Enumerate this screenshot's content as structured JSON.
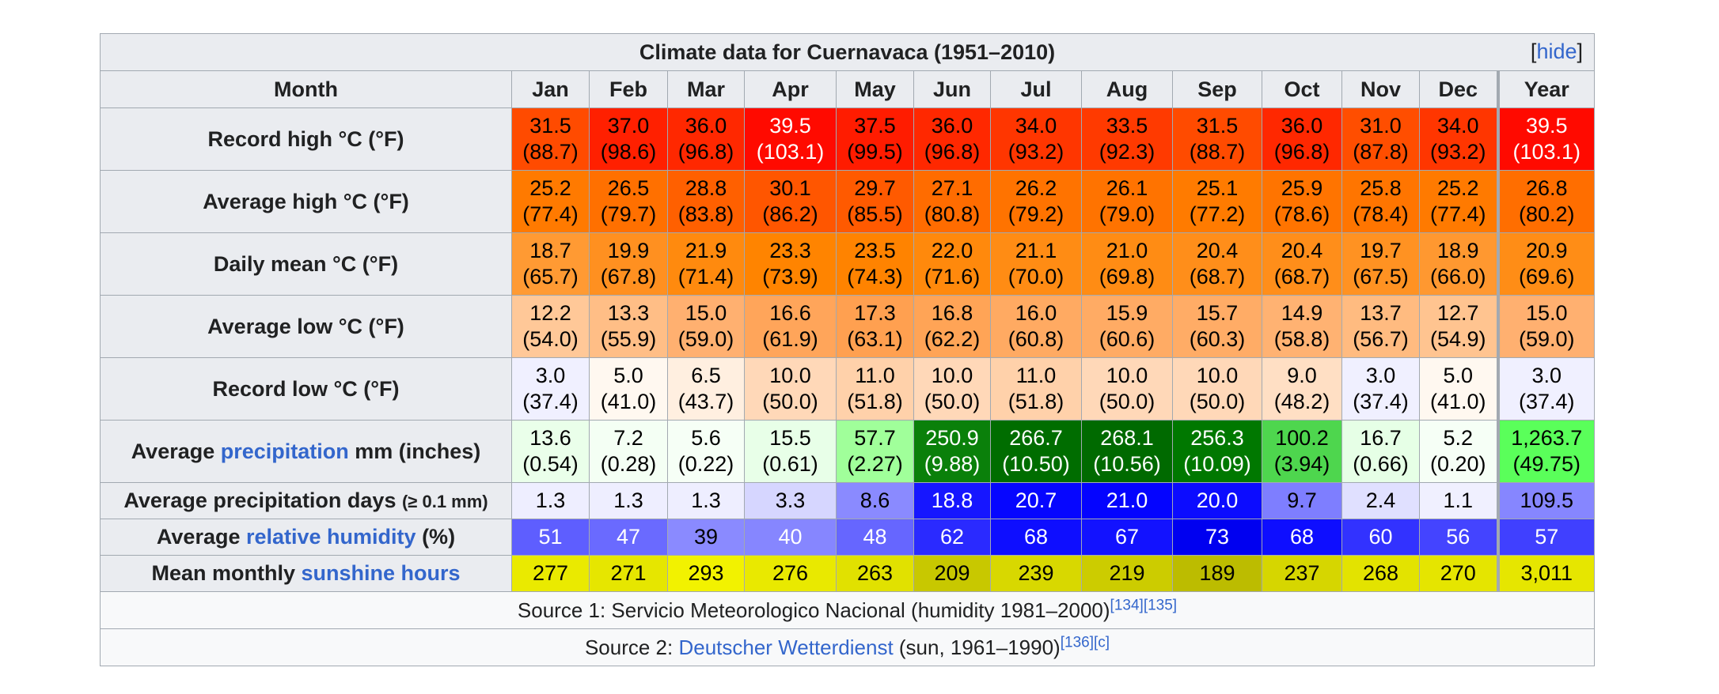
{
  "table": {
    "title": "Climate data for Cuernavaca (1951–2010)",
    "hide": "hide",
    "header": [
      "Month",
      "Jan",
      "Feb",
      "Mar",
      "Apr",
      "May",
      "Jun",
      "Jul",
      "Aug",
      "Sep",
      "Oct",
      "Nov",
      "Dec",
      "Year"
    ],
    "rows": [
      {
        "label": [
          {
            "text": "Record high °C (°F)"
          }
        ],
        "cells": [
          {
            "a": "31.5",
            "b": "(88.7)",
            "bg": "#ff4b00"
          },
          {
            "a": "37.0",
            "b": "(98.6)",
            "bg": "#ff2000"
          },
          {
            "a": "36.0",
            "b": "(96.8)",
            "bg": "#ff2800"
          },
          {
            "a": "39.5",
            "b": "(103.1)",
            "bg": "#ff0a00",
            "fg": "#ffffff"
          },
          {
            "a": "37.5",
            "b": "(99.5)",
            "bg": "#ff1c00"
          },
          {
            "a": "36.0",
            "b": "(96.8)",
            "bg": "#ff2800"
          },
          {
            "a": "34.0",
            "b": "(93.2)",
            "bg": "#ff3600"
          },
          {
            "a": "33.5",
            "b": "(92.3)",
            "bg": "#ff3a00"
          },
          {
            "a": "31.5",
            "b": "(88.7)",
            "bg": "#ff4b00"
          },
          {
            "a": "36.0",
            "b": "(96.8)",
            "bg": "#ff2800"
          },
          {
            "a": "31.0",
            "b": "(87.8)",
            "bg": "#ff4e00"
          },
          {
            "a": "34.0",
            "b": "(93.2)",
            "bg": "#ff3600"
          },
          {
            "a": "39.5",
            "b": "(103.1)",
            "bg": "#ff0a00",
            "fg": "#ffffff"
          }
        ]
      },
      {
        "label": [
          {
            "text": "Average high °C (°F)"
          }
        ],
        "cells": [
          {
            "a": "25.2",
            "b": "(77.4)",
            "bg": "#ff7a00"
          },
          {
            "a": "26.5",
            "b": "(79.7)",
            "bg": "#ff7000"
          },
          {
            "a": "28.8",
            "b": "(83.8)",
            "bg": "#ff6000"
          },
          {
            "a": "30.1",
            "b": "(86.2)",
            "bg": "#ff5600"
          },
          {
            "a": "29.7",
            "b": "(85.5)",
            "bg": "#ff5a00"
          },
          {
            "a": "27.1",
            "b": "(80.8)",
            "bg": "#ff6c00"
          },
          {
            "a": "26.2",
            "b": "(79.2)",
            "bg": "#ff7300"
          },
          {
            "a": "26.1",
            "b": "(79.0)",
            "bg": "#ff7300"
          },
          {
            "a": "25.1",
            "b": "(77.2)",
            "bg": "#ff7b00"
          },
          {
            "a": "25.9",
            "b": "(78.6)",
            "bg": "#ff7400"
          },
          {
            "a": "25.8",
            "b": "(78.4)",
            "bg": "#ff7500"
          },
          {
            "a": "25.2",
            "b": "(77.4)",
            "bg": "#ff7a00"
          },
          {
            "a": "26.8",
            "b": "(80.2)",
            "bg": "#ff6e00"
          }
        ]
      },
      {
        "label": [
          {
            "text": "Daily mean °C (°F)"
          }
        ],
        "cells": [
          {
            "a": "18.7",
            "b": "(65.7)",
            "bg": "#ff9a33"
          },
          {
            "a": "19.9",
            "b": "(67.8)",
            "bg": "#ff9020"
          },
          {
            "a": "21.9",
            "b": "(71.4)",
            "bg": "#ff8a0e"
          },
          {
            "a": "23.3",
            "b": "(73.9)",
            "bg": "#ff8400"
          },
          {
            "a": "23.5",
            "b": "(74.3)",
            "bg": "#ff8300"
          },
          {
            "a": "22.0",
            "b": "(71.6)",
            "bg": "#ff890c"
          },
          {
            "a": "21.1",
            "b": "(70.0)",
            "bg": "#ff8c14"
          },
          {
            "a": "21.0",
            "b": "(69.8)",
            "bg": "#ff8c14"
          },
          {
            "a": "20.4",
            "b": "(68.7)",
            "bg": "#ff8e1a"
          },
          {
            "a": "20.4",
            "b": "(68.7)",
            "bg": "#ff8e1a"
          },
          {
            "a": "19.7",
            "b": "(67.5)",
            "bg": "#ff9222"
          },
          {
            "a": "18.9",
            "b": "(66.0)",
            "bg": "#ff9830"
          },
          {
            "a": "20.9",
            "b": "(69.6)",
            "bg": "#ff8d16"
          }
        ]
      },
      {
        "label": [
          {
            "text": "Average low °C (°F)"
          }
        ],
        "cells": [
          {
            "a": "12.2",
            "b": "(54.0)",
            "bg": "#ffc898"
          },
          {
            "a": "13.3",
            "b": "(55.9)",
            "bg": "#ffbe86"
          },
          {
            "a": "15.0",
            "b": "(59.0)",
            "bg": "#ffb070"
          },
          {
            "a": "16.6",
            "b": "(61.9)",
            "bg": "#ffa55a"
          },
          {
            "a": "17.3",
            "b": "(63.1)",
            "bg": "#ffa050"
          },
          {
            "a": "16.8",
            "b": "(62.2)",
            "bg": "#ffa456"
          },
          {
            "a": "16.0",
            "b": "(60.8)",
            "bg": "#ffaa62"
          },
          {
            "a": "15.9",
            "b": "(60.6)",
            "bg": "#ffab64"
          },
          {
            "a": "15.7",
            "b": "(60.3)",
            "bg": "#ffac66"
          },
          {
            "a": "14.9",
            "b": "(58.8)",
            "bg": "#ffb272"
          },
          {
            "a": "13.7",
            "b": "(56.7)",
            "bg": "#ffbb80"
          },
          {
            "a": "12.7",
            "b": "(54.9)",
            "bg": "#ffc490"
          },
          {
            "a": "15.0",
            "b": "(59.0)",
            "bg": "#ffb070"
          }
        ]
      },
      {
        "label": [
          {
            "text": "Record low °C (°F)"
          }
        ],
        "cells": [
          {
            "a": "3.0",
            "b": "(37.4)",
            "bg": "#f0f0ff"
          },
          {
            "a": "5.0",
            "b": "(41.0)",
            "bg": "#fff8f0"
          },
          {
            "a": "6.5",
            "b": "(43.7)",
            "bg": "#ffefe0"
          },
          {
            "a": "10.0",
            "b": "(50.0)",
            "bg": "#ffd8b8"
          },
          {
            "a": "11.0",
            "b": "(51.8)",
            "bg": "#ffd1aa"
          },
          {
            "a": "10.0",
            "b": "(50.0)",
            "bg": "#ffd8b8"
          },
          {
            "a": "11.0",
            "b": "(51.8)",
            "bg": "#ffd1aa"
          },
          {
            "a": "10.0",
            "b": "(50.0)",
            "bg": "#ffd8b8"
          },
          {
            "a": "10.0",
            "b": "(50.0)",
            "bg": "#ffd8b8"
          },
          {
            "a": "9.0",
            "b": "(48.2)",
            "bg": "#ffdfc4"
          },
          {
            "a": "3.0",
            "b": "(37.4)",
            "bg": "#f0f0ff"
          },
          {
            "a": "5.0",
            "b": "(41.0)",
            "bg": "#fff8f0"
          },
          {
            "a": "3.0",
            "b": "(37.4)",
            "bg": "#f0f0ff"
          }
        ]
      },
      {
        "label": [
          {
            "text": "Average "
          },
          {
            "text": "precipitation",
            "link": true
          },
          {
            "text": " mm (inches)"
          }
        ],
        "cells": [
          {
            "a": "13.6",
            "b": "(0.54)",
            "bg": "#eaffea"
          },
          {
            "a": "7.2",
            "b": "(0.28)",
            "bg": "#f4fff4"
          },
          {
            "a": "5.6",
            "b": "(0.22)",
            "bg": "#f6fff6"
          },
          {
            "a": "15.5",
            "b": "(0.61)",
            "bg": "#e8ffe8"
          },
          {
            "a": "57.7",
            "b": "(2.27)",
            "bg": "#a0ff9a"
          },
          {
            "a": "250.9",
            "b": "(9.88)",
            "bg": "#0a800a",
            "fg": "#ffffff"
          },
          {
            "a": "266.7",
            "b": "(10.50)",
            "bg": "#006d00",
            "fg": "#ffffff"
          },
          {
            "a": "268.1",
            "b": "(10.56)",
            "bg": "#006a00",
            "fg": "#ffffff"
          },
          {
            "a": "256.3",
            "b": "(10.09)",
            "bg": "#007800",
            "fg": "#ffffff"
          },
          {
            "a": "100.2",
            "b": "(3.94)",
            "bg": "#4ed64e"
          },
          {
            "a": "16.7",
            "b": "(0.66)",
            "bg": "#e6ffe6"
          },
          {
            "a": "5.2",
            "b": "(0.20)",
            "bg": "#f6fff6"
          },
          {
            "a": "1,263.7",
            "b": "(49.75)",
            "bg": "#5aff5a"
          }
        ]
      },
      {
        "label": [
          {
            "text": "Average precipitation days "
          },
          {
            "text": "(≥ 0.1 mm)",
            "small": true
          }
        ],
        "cells": [
          {
            "a": "1.3",
            "bg": "#eeeeff"
          },
          {
            "a": "1.3",
            "bg": "#eeeeff"
          },
          {
            "a": "1.3",
            "bg": "#eeeeff"
          },
          {
            "a": "3.3",
            "bg": "#d6d6ff"
          },
          {
            "a": "8.6",
            "bg": "#8a8aff"
          },
          {
            "a": "18.8",
            "bg": "#1616ff",
            "fg": "#ffffff"
          },
          {
            "a": "20.7",
            "bg": "#0606ff",
            "fg": "#ffffff"
          },
          {
            "a": "21.0",
            "bg": "#0404ff",
            "fg": "#ffffff"
          },
          {
            "a": "20.0",
            "bg": "#0c0cff",
            "fg": "#ffffff"
          },
          {
            "a": "9.7",
            "bg": "#7e7eff"
          },
          {
            "a": "2.4",
            "bg": "#e0e0ff"
          },
          {
            "a": "1.1",
            "bg": "#f0f0ff"
          },
          {
            "a": "109.5",
            "bg": "#8686ff"
          }
        ]
      },
      {
        "label": [
          {
            "text": "Average "
          },
          {
            "text": "relative humidity",
            "link": true
          },
          {
            "text": " (%)"
          }
        ],
        "cells": [
          {
            "a": "51",
            "bg": "#5e5eff",
            "fg": "#ffffff"
          },
          {
            "a": "47",
            "bg": "#6a6aff",
            "fg": "#ffffff"
          },
          {
            "a": "39",
            "bg": "#8a8aff"
          },
          {
            "a": "40",
            "bg": "#8686ff",
            "fg": "#ffffff"
          },
          {
            "a": "48",
            "bg": "#6666ff",
            "fg": "#ffffff"
          },
          {
            "a": "62",
            "bg": "#2a2aff",
            "fg": "#ffffff"
          },
          {
            "a": "68",
            "bg": "#0e0eff",
            "fg": "#ffffff"
          },
          {
            "a": "67",
            "bg": "#1212ff",
            "fg": "#ffffff"
          },
          {
            "a": "73",
            "bg": "#0000f0",
            "fg": "#ffffff"
          },
          {
            "a": "68",
            "bg": "#0e0eff",
            "fg": "#ffffff"
          },
          {
            "a": "60",
            "bg": "#3232ff",
            "fg": "#ffffff"
          },
          {
            "a": "56",
            "bg": "#4444ff",
            "fg": "#ffffff"
          },
          {
            "a": "57",
            "bg": "#4040ff",
            "fg": "#ffffff"
          }
        ]
      },
      {
        "label": [
          {
            "text": "Mean monthly "
          },
          {
            "text": "sunshine hours",
            "link": true
          }
        ],
        "cells": [
          {
            "a": "277",
            "bg": "#eaea00"
          },
          {
            "a": "271",
            "bg": "#e6e600"
          },
          {
            "a": "293",
            "bg": "#f2f200"
          },
          {
            "a": "276",
            "bg": "#e9e900"
          },
          {
            "a": "263",
            "bg": "#e1e100"
          },
          {
            "a": "209",
            "bg": "#c8c800"
          },
          {
            "a": "239",
            "bg": "#d8d800"
          },
          {
            "a": "219",
            "bg": "#cccc00"
          },
          {
            "a": "189",
            "bg": "#bcbc00"
          },
          {
            "a": "237",
            "bg": "#d6d600"
          },
          {
            "a": "268",
            "bg": "#e3e300"
          },
          {
            "a": "270",
            "bg": "#e5e500"
          },
          {
            "a": "3,011",
            "bg": "#e6e600"
          }
        ]
      }
    ],
    "sources": [
      [
        {
          "text": "Source 1: Servicio Meteorologico Nacional (humidity 1981–2000)"
        },
        {
          "text": "[134]",
          "sup": true
        },
        {
          "text": "[135]",
          "sup": true
        }
      ],
      [
        {
          "text": "Source 2: "
        },
        {
          "text": "Deutscher Wetterdienst",
          "link": true
        },
        {
          "text": " (sun, 1961–1990)"
        },
        {
          "text": "[136]",
          "sup": true
        },
        {
          "text": "[c]",
          "sup": true
        }
      ]
    ]
  }
}
